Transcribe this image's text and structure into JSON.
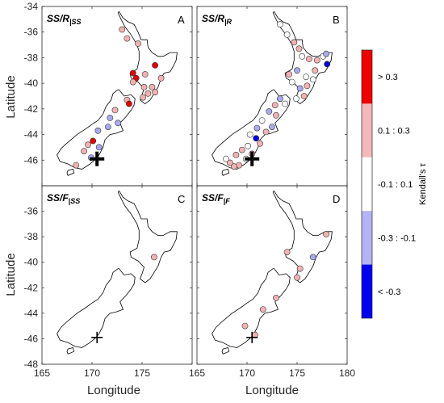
{
  "figure": {
    "xlabel": "Longitude",
    "ylabel": "Latitude",
    "xlim": [
      165,
      180
    ],
    "ylim": [
      -48,
      -34
    ],
    "x_ticks": [
      "165",
      "170",
      "175",
      "180"
    ],
    "y_ticks": [
      "-34",
      "-36",
      "-38",
      "-40",
      "-42",
      "-44",
      "-46",
      "-48"
    ],
    "panels": [
      {
        "letter": "A",
        "label_main": "SS/R",
        "label_sub": "|SS",
        "stations": [
          {
            "lon": 173.0,
            "lat": -35.8,
            "c": "pl"
          },
          {
            "lon": 173.5,
            "lat": -36.5,
            "c": "pl"
          },
          {
            "lon": 174.6,
            "lat": -36.9,
            "c": "pl"
          },
          {
            "lon": 174.1,
            "lat": -39.2,
            "c": "r"
          },
          {
            "lon": 174.4,
            "lat": -39.6,
            "c": "r"
          },
          {
            "lon": 174.1,
            "lat": -39.9,
            "c": "pl"
          },
          {
            "lon": 175.3,
            "lat": -39.3,
            "c": "pl"
          },
          {
            "lon": 176.3,
            "lat": -38.6,
            "c": "r"
          },
          {
            "lon": 176.9,
            "lat": -39.6,
            "c": "pl"
          },
          {
            "lon": 176.0,
            "lat": -40.3,
            "c": "pl"
          },
          {
            "lon": 175.6,
            "lat": -40.8,
            "c": "pl"
          },
          {
            "lon": 175.1,
            "lat": -41.1,
            "c": "pl"
          },
          {
            "lon": 176.3,
            "lat": -40.7,
            "c": "pl"
          },
          {
            "lon": 175.2,
            "lat": -40.3,
            "c": "pl"
          },
          {
            "lon": 173.5,
            "lat": -41.3,
            "c": "pl"
          },
          {
            "lon": 173.7,
            "lat": -41.6,
            "c": "r"
          },
          {
            "lon": 172.3,
            "lat": -42.1,
            "c": "pl"
          },
          {
            "lon": 171.8,
            "lat": -42.7,
            "c": "pb"
          },
          {
            "lon": 172.6,
            "lat": -43.1,
            "c": "pb"
          },
          {
            "lon": 171.6,
            "lat": -43.4,
            "c": "pb"
          },
          {
            "lon": 170.6,
            "lat": -43.7,
            "c": "pb"
          },
          {
            "lon": 170.1,
            "lat": -44.5,
            "c": "r"
          },
          {
            "lon": 169.6,
            "lat": -44.8,
            "c": "pl"
          },
          {
            "lon": 169.2,
            "lat": -45.3,
            "c": "pl"
          },
          {
            "lon": 170.7,
            "lat": -45.0,
            "c": "pb"
          },
          {
            "lon": 169.9,
            "lat": -45.8,
            "c": "pb"
          },
          {
            "lon": 168.4,
            "lat": -46.4,
            "c": "pl"
          }
        ]
      },
      {
        "letter": "B",
        "label_main": "SS/R",
        "label_sub": "|R",
        "stations": [
          {
            "lon": 173.3,
            "lat": -35.4,
            "c": "w"
          },
          {
            "lon": 174.0,
            "lat": -36.2,
            "c": "w"
          },
          {
            "lon": 174.7,
            "lat": -36.8,
            "c": "pl"
          },
          {
            "lon": 175.2,
            "lat": -37.3,
            "c": "pl"
          },
          {
            "lon": 175.5,
            "lat": -37.9,
            "c": "w"
          },
          {
            "lon": 176.2,
            "lat": -38.1,
            "c": "pl"
          },
          {
            "lon": 177.0,
            "lat": -38.2,
            "c": "pl"
          },
          {
            "lon": 177.6,
            "lat": -37.9,
            "c": "w"
          },
          {
            "lon": 178.0,
            "lat": -38.5,
            "c": "b"
          },
          {
            "lon": 177.9,
            "lat": -37.7,
            "c": "pb"
          },
          {
            "lon": 176.8,
            "lat": -39.0,
            "c": "pl"
          },
          {
            "lon": 175.9,
            "lat": -39.5,
            "c": "w"
          },
          {
            "lon": 175.0,
            "lat": -39.0,
            "c": "pb"
          },
          {
            "lon": 174.2,
            "lat": -39.3,
            "c": "pl"
          },
          {
            "lon": 174.5,
            "lat": -39.9,
            "c": "w"
          },
          {
            "lon": 175.3,
            "lat": -40.4,
            "c": "pb"
          },
          {
            "lon": 176.0,
            "lat": -40.2,
            "c": "pl"
          },
          {
            "lon": 176.6,
            "lat": -39.7,
            "c": "w"
          },
          {
            "lon": 175.7,
            "lat": -41.0,
            "c": "pl"
          },
          {
            "lon": 174.9,
            "lat": -41.2,
            "c": "w"
          },
          {
            "lon": 173.3,
            "lat": -41.2,
            "c": "pb"
          },
          {
            "lon": 172.8,
            "lat": -41.7,
            "c": "pl"
          },
          {
            "lon": 173.8,
            "lat": -41.6,
            "c": "w"
          },
          {
            "lon": 172.2,
            "lat": -42.2,
            "c": "pb"
          },
          {
            "lon": 172.9,
            "lat": -42.5,
            "c": "pl"
          },
          {
            "lon": 171.5,
            "lat": -42.9,
            "c": "w"
          },
          {
            "lon": 172.5,
            "lat": -43.4,
            "c": "pb"
          },
          {
            "lon": 171.9,
            "lat": -43.8,
            "c": "pl"
          },
          {
            "lon": 171.0,
            "lat": -43.5,
            "c": "pb"
          },
          {
            "lon": 170.3,
            "lat": -44.0,
            "c": "w"
          },
          {
            "lon": 170.9,
            "lat": -44.3,
            "c": "b"
          },
          {
            "lon": 171.3,
            "lat": -44.7,
            "c": "pl"
          },
          {
            "lon": 170.1,
            "lat": -44.9,
            "c": "w"
          },
          {
            "lon": 169.5,
            "lat": -45.2,
            "c": "pl"
          },
          {
            "lon": 168.9,
            "lat": -45.6,
            "c": "pl"
          },
          {
            "lon": 169.9,
            "lat": -45.9,
            "c": "w"
          },
          {
            "lon": 170.5,
            "lat": -45.5,
            "c": "pl"
          },
          {
            "lon": 168.3,
            "lat": -46.2,
            "c": "pl"
          },
          {
            "lon": 167.9,
            "lat": -45.9,
            "c": "w"
          },
          {
            "lon": 169.2,
            "lat": -46.4,
            "c": "pl"
          },
          {
            "lon": 168.7,
            "lat": -46.5,
            "c": "pl"
          }
        ]
      },
      {
        "letter": "C",
        "label_main": "SS/F",
        "label_sub": "|SS",
        "stations": [
          {
            "lon": 176.2,
            "lat": -39.6,
            "c": "pl"
          }
        ]
      },
      {
        "letter": "D",
        "label_main": "SS/F",
        "label_sub": "|F",
        "stations": [
          {
            "lon": 174.0,
            "lat": -39.2,
            "c": "pl"
          },
          {
            "lon": 177.9,
            "lat": -37.8,
            "c": "pl"
          },
          {
            "lon": 175.3,
            "lat": -40.5,
            "c": "pl"
          },
          {
            "lon": 176.6,
            "lat": -39.6,
            "c": "pb"
          },
          {
            "lon": 175.0,
            "lat": -41.2,
            "c": "pl"
          },
          {
            "lon": 172.9,
            "lat": -42.8,
            "c": "pl"
          },
          {
            "lon": 171.6,
            "lat": -43.7,
            "c": "pl"
          },
          {
            "lon": 169.8,
            "lat": -45.0,
            "c": "pl"
          },
          {
            "lon": 170.8,
            "lat": -45.7,
            "c": "pl"
          }
        ]
      }
    ],
    "marker": {
      "lon": 170.5,
      "lat": -45.9
    }
  },
  "colorbar": {
    "title": "Kendall's τ",
    "bins": [
      {
        "label": "> 0.3",
        "color": "#ee0000"
      },
      {
        "label": "0.1 : 0.3",
        "color": "#f5b8b8"
      },
      {
        "label": "-0.1 : 0.1",
        "color": "#ffffff"
      },
      {
        "label": "-0.3 : -0.1",
        "color": "#b3b3f5"
      },
      {
        "label": "< -0.3",
        "color": "#0000ee"
      }
    ]
  },
  "colors": {
    "r": "#e10000",
    "pl": "#f3b2b2",
    "w": "#ffffff",
    "pb": "#a9a9ee",
    "b": "#0000dd"
  }
}
